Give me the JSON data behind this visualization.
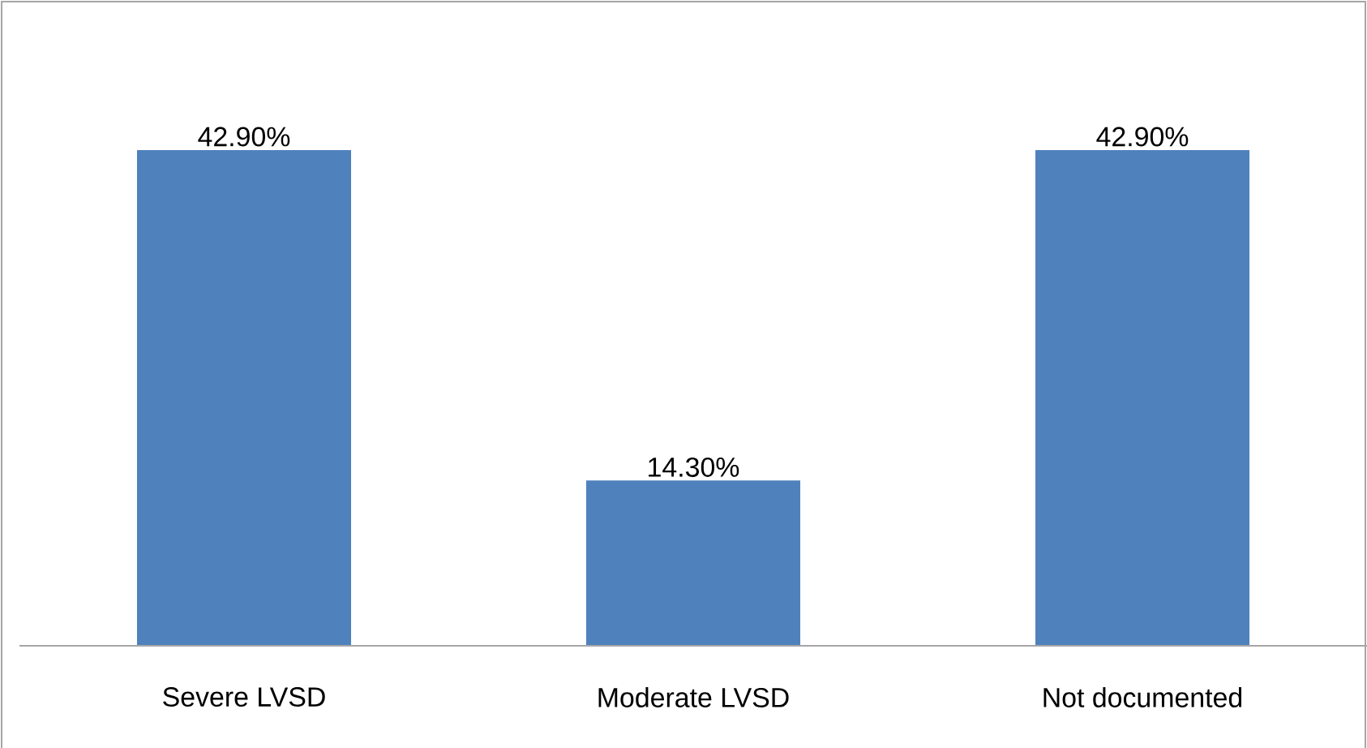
{
  "chart_data": {
    "type": "bar",
    "categories": [
      "Severe LVSD",
      "Moderate LVSD",
      "Not documented"
    ],
    "values": [
      42.9,
      14.3,
      42.9
    ],
    "value_labels": [
      "42.90%",
      "14.30%",
      "42.90%"
    ],
    "color": "#4f81bd"
  }
}
